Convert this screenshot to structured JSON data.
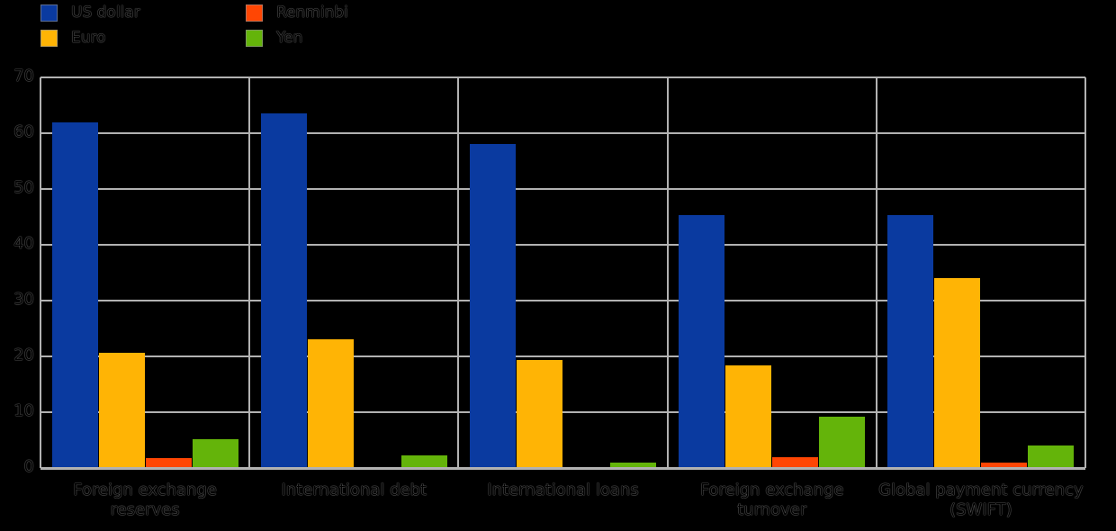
{
  "chart_data": {
    "type": "bar",
    "title": "",
    "xlabel": "",
    "ylabel": "",
    "categories": [
      "Foreign exchange reserves",
      "International debt",
      "International loans",
      "Foreign exchange turnover",
      "Global payment currency (SWIFT)"
    ],
    "category_label_lines": [
      [
        "Foreign exchange",
        "reserves"
      ],
      [
        "International debt"
      ],
      [
        "International loans"
      ],
      [
        "Foreign exchange",
        "turnover"
      ],
      [
        "Global payment currency",
        "(SWIFT)"
      ]
    ],
    "series": [
      {
        "name": "US dollar",
        "color": "#0a3aa0",
        "values": [
          62,
          63.5,
          58,
          45.3,
          45.3
        ]
      },
      {
        "name": "Euro",
        "color": "#ffb405",
        "values": [
          20.7,
          23,
          19.3,
          18.4,
          34
        ]
      },
      {
        "name": "Renminbi",
        "color": "#ff4603",
        "values": [
          1.8,
          0.2,
          0.2,
          1.9,
          1
        ]
      },
      {
        "name": "Yen",
        "color": "#64b40a",
        "values": [
          5.2,
          2.3,
          1,
          9.2,
          4
        ]
      }
    ],
    "ylim": [
      0,
      70
    ],
    "yticks": [
      70,
      60,
      50,
      40,
      30,
      20,
      10,
      0
    ],
    "grid": true,
    "legend_position": "top-left",
    "colors": {
      "background": "#000000",
      "gridline": "#b2b2b2",
      "text": "#000000"
    }
  }
}
